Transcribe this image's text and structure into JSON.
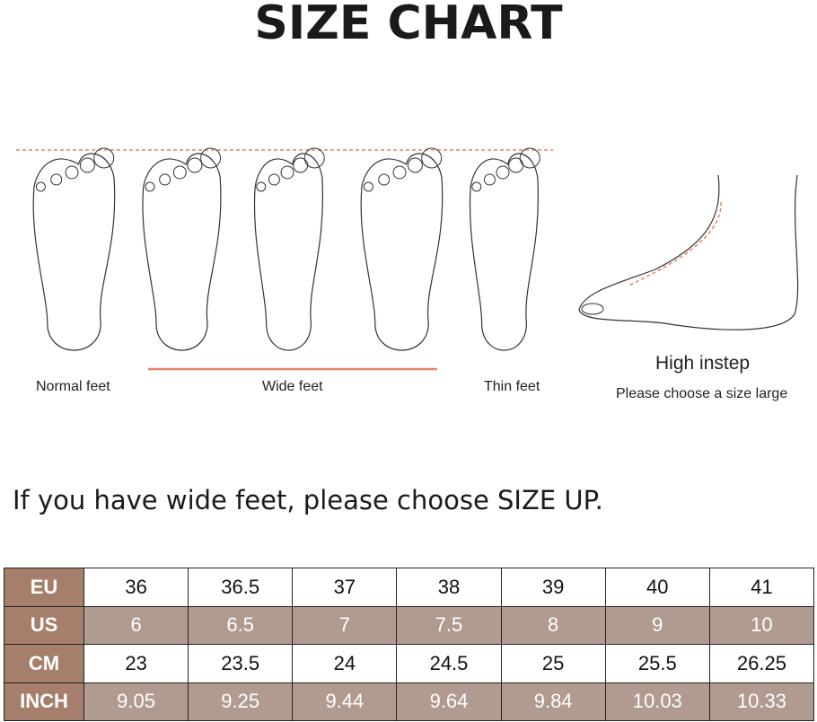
{
  "title": "SIZE CHART",
  "illustration": {
    "labels": {
      "normal": "Normal feet",
      "wide": "Wide feet",
      "thin": "Thin feet"
    },
    "instep_title": "High instep",
    "instep_note": "Please choose a size large",
    "accent_color": "#e8826a"
  },
  "notice": "If you have wide feet, please choose SIZE UP.",
  "size_table": {
    "header_color": "#a57f6b",
    "alt_row_color": "#b19b90",
    "rows": [
      {
        "label": "EU",
        "values": [
          "36",
          "36.5",
          "37",
          "38",
          "39",
          "40",
          "41"
        ]
      },
      {
        "label": "US",
        "values": [
          "6",
          "6.5",
          "7",
          "7.5",
          "8",
          "9",
          "10"
        ]
      },
      {
        "label": "CM",
        "values": [
          "23",
          "23.5",
          "24",
          "24.5",
          "25",
          "25.5",
          "26.25"
        ]
      },
      {
        "label": "INCH",
        "values": [
          "9.05",
          "9.25",
          "9.44",
          "9.64",
          "9.84",
          "10.03",
          "10.33"
        ]
      }
    ]
  }
}
